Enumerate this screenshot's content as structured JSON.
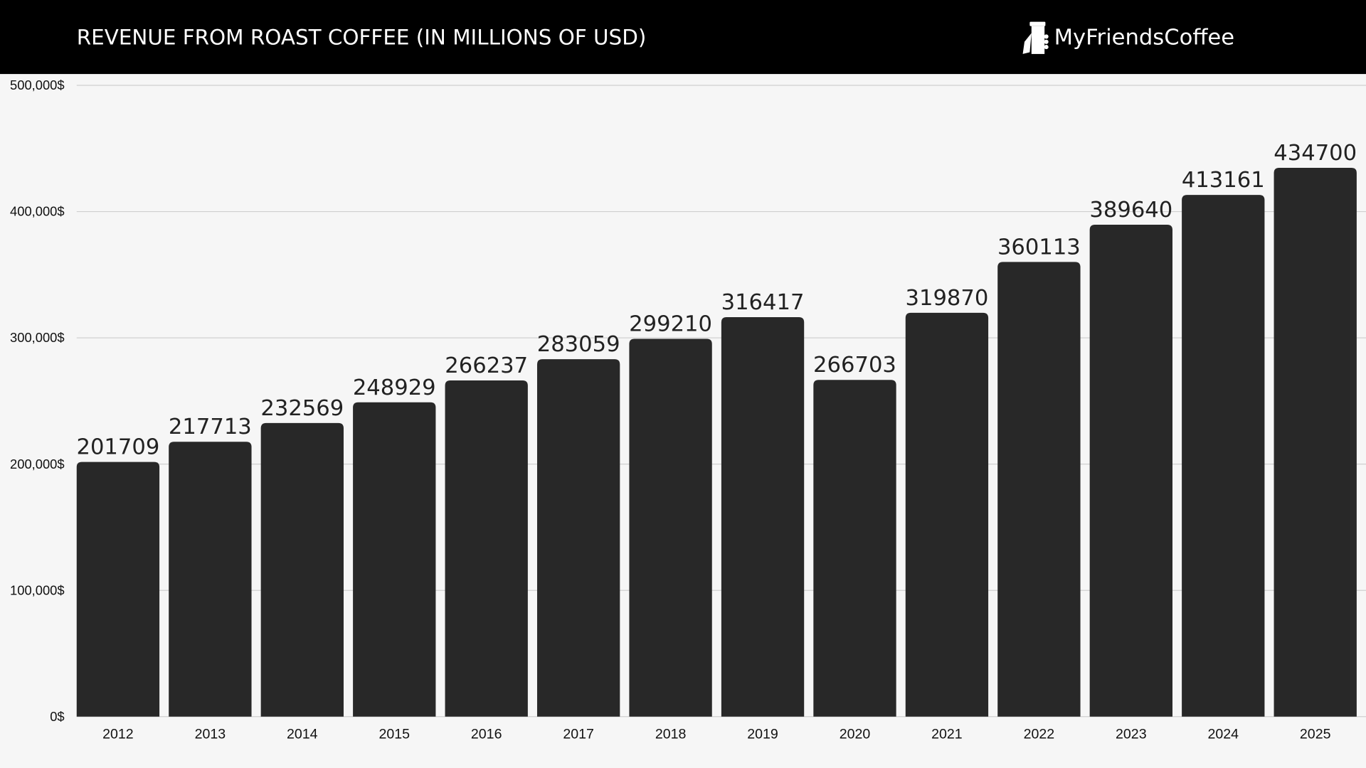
{
  "header": {
    "title": "REVENUE FROM ROAST COFFEE (IN MILLIONS OF USD)",
    "brand": "MyFriendsCoffee",
    "brand_icon": "coffee-cup-in-hand-icon"
  },
  "colors": {
    "header_bg": "#000000",
    "bar": "#282828",
    "background": "#f6f6f6",
    "grid": "#d0d0d0"
  },
  "chart_data": {
    "type": "bar",
    "title": "REVENUE FROM ROAST COFFEE (IN MILLIONS OF USD)",
    "categories": [
      "2012",
      "2013",
      "2014",
      "2015",
      "2016",
      "2017",
      "2018",
      "2019",
      "2020",
      "2021",
      "2022",
      "2023",
      "2024",
      "2025"
    ],
    "values": [
      201709,
      217713,
      232569,
      248929,
      266237,
      283059,
      299210,
      316417,
      266703,
      319870,
      360113,
      389640,
      413161,
      434700
    ],
    "data_labels": [
      "201709",
      "217713",
      "232569",
      "248929",
      "266237",
      "283059",
      "299210",
      "316417",
      "266703",
      "319870",
      "360113",
      "389640",
      "413161",
      "434700"
    ],
    "ylim": [
      0,
      500000
    ],
    "yticks": [
      0,
      100000,
      200000,
      300000,
      400000,
      500000
    ],
    "ytick_labels": [
      "0$",
      "100,000$",
      "200,000$",
      "300,000$",
      "400,000$",
      "500,000$"
    ],
    "grid": true,
    "xlabel": "",
    "ylabel": ""
  }
}
